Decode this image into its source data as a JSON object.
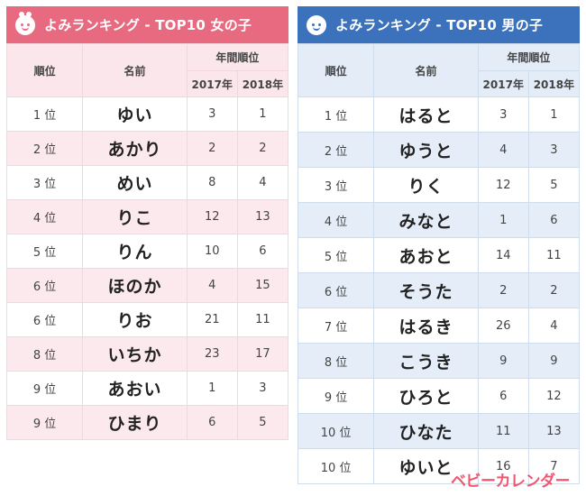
{
  "colors": {
    "girls_accent": "#e86a80",
    "boys_accent": "#3c71bc",
    "logo": "#f0566e"
  },
  "girls": {
    "title": "よみランキング - TOP10 女の子",
    "icon": "girl-face-icon",
    "headers": {
      "rank": "順位",
      "name": "名前",
      "year_rank": "年間順位",
      "y2017": "2017年",
      "y2018": "2018年"
    },
    "rows": [
      {
        "rank": "1 位",
        "name": "ゆい",
        "y2017": "3",
        "y2018": "1"
      },
      {
        "rank": "2 位",
        "name": "あかり",
        "y2017": "2",
        "y2018": "2"
      },
      {
        "rank": "3 位",
        "name": "めい",
        "y2017": "8",
        "y2018": "4"
      },
      {
        "rank": "4 位",
        "name": "りこ",
        "y2017": "12",
        "y2018": "13"
      },
      {
        "rank": "5 位",
        "name": "りん",
        "y2017": "10",
        "y2018": "6"
      },
      {
        "rank": "6 位",
        "name": "ほのか",
        "y2017": "4",
        "y2018": "15"
      },
      {
        "rank": "6 位",
        "name": "りお",
        "y2017": "21",
        "y2018": "11"
      },
      {
        "rank": "8 位",
        "name": "いちか",
        "y2017": "23",
        "y2018": "17"
      },
      {
        "rank": "9 位",
        "name": "あおい",
        "y2017": "1",
        "y2018": "3"
      },
      {
        "rank": "9 位",
        "name": "ひまり",
        "y2017": "6",
        "y2018": "5"
      }
    ]
  },
  "boys": {
    "title": "よみランキング - TOP10 男の子",
    "icon": "boy-face-icon",
    "headers": {
      "rank": "順位",
      "name": "名前",
      "year_rank": "年間順位",
      "y2017": "2017年",
      "y2018": "2018年"
    },
    "rows": [
      {
        "rank": "1 位",
        "name": "はると",
        "y2017": "3",
        "y2018": "1"
      },
      {
        "rank": "2 位",
        "name": "ゆうと",
        "y2017": "4",
        "y2018": "3"
      },
      {
        "rank": "3 位",
        "name": "りく",
        "y2017": "12",
        "y2018": "5"
      },
      {
        "rank": "4 位",
        "name": "みなと",
        "y2017": "1",
        "y2018": "6"
      },
      {
        "rank": "5 位",
        "name": "あおと",
        "y2017": "14",
        "y2018": "11"
      },
      {
        "rank": "6 位",
        "name": "そうた",
        "y2017": "2",
        "y2018": "2"
      },
      {
        "rank": "7 位",
        "name": "はるき",
        "y2017": "26",
        "y2018": "4"
      },
      {
        "rank": "8 位",
        "name": "こうき",
        "y2017": "9",
        "y2018": "9"
      },
      {
        "rank": "9 位",
        "name": "ひろと",
        "y2017": "6",
        "y2018": "12"
      },
      {
        "rank": "10 位",
        "name": "ひなた",
        "y2017": "11",
        "y2018": "13"
      },
      {
        "rank": "10 位",
        "name": "ゆいと",
        "y2017": "16",
        "y2018": "7"
      }
    ]
  },
  "logo_text": "ベビーカレンダー"
}
